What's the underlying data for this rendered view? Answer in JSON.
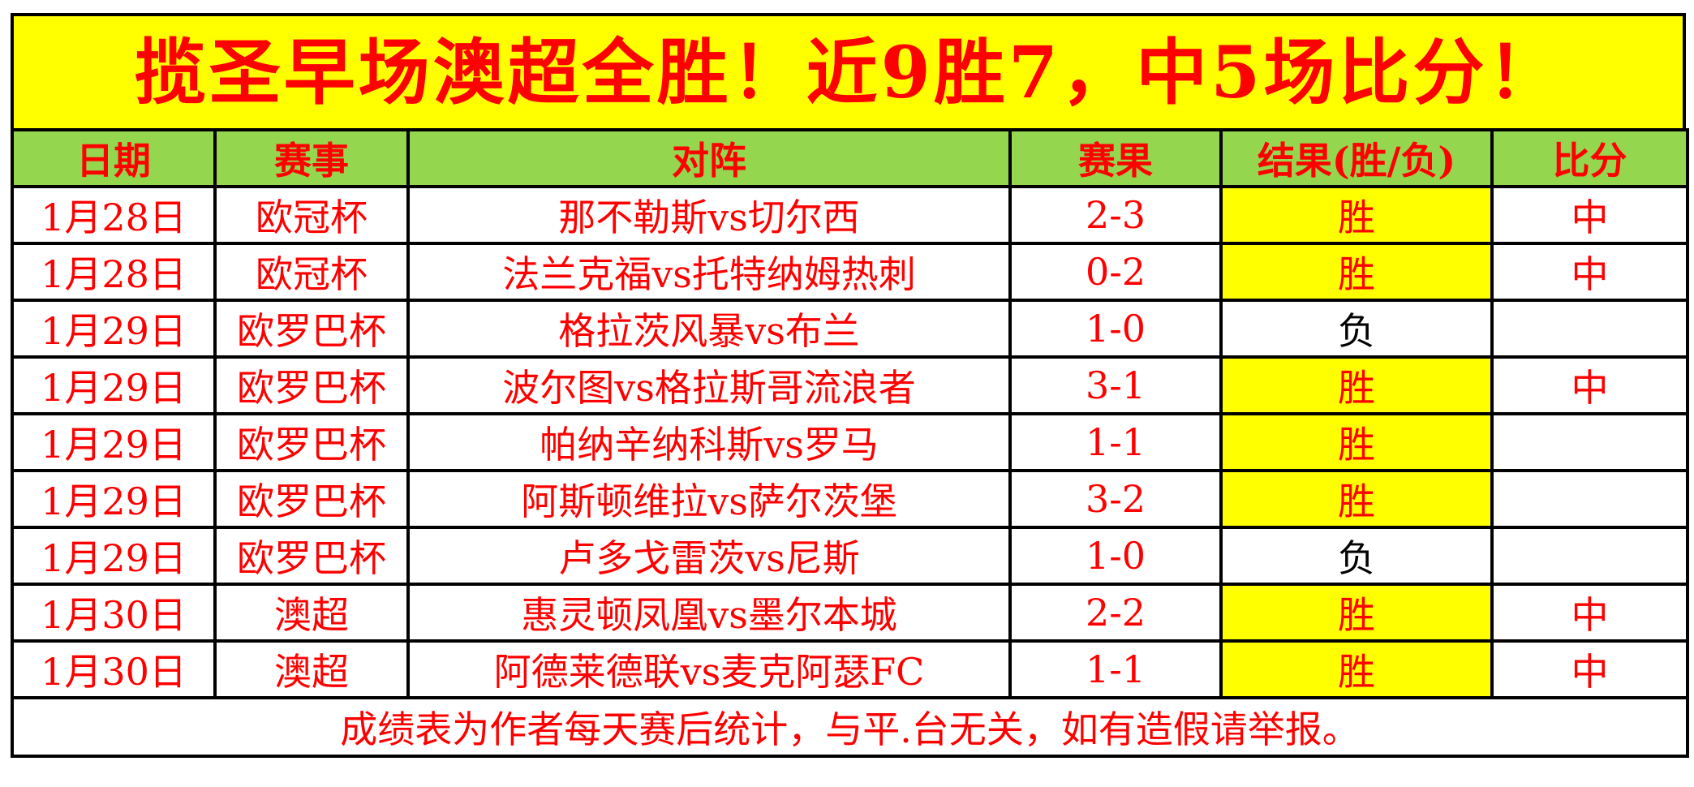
{
  "banner": {
    "title": "揽圣早场澳超全胜！近9胜7，中5场比分！"
  },
  "table": {
    "columns": [
      "日期",
      "赛事",
      "对阵",
      "赛果",
      "结果(胜/负)",
      "比分"
    ],
    "rows": [
      {
        "date": "1月28日",
        "league": "欧冠杯",
        "match": "那不勒斯vs切尔西",
        "score": "2-3",
        "result": "胜",
        "hit": "中"
      },
      {
        "date": "1月28日",
        "league": "欧冠杯",
        "match": "法兰克福vs托特纳姆热刺",
        "score": "0-2",
        "result": "胜",
        "hit": "中"
      },
      {
        "date": "1月29日",
        "league": "欧罗巴杯",
        "match": "格拉茨风暴vs布兰",
        "score": "1-0",
        "result": "负",
        "hit": ""
      },
      {
        "date": "1月29日",
        "league": "欧罗巴杯",
        "match": "波尔图vs格拉斯哥流浪者",
        "score": "3-1",
        "result": "胜",
        "hit": "中"
      },
      {
        "date": "1月29日",
        "league": "欧罗巴杯",
        "match": "帕纳辛纳科斯vs罗马",
        "score": "1-1",
        "result": "胜",
        "hit": ""
      },
      {
        "date": "1月29日",
        "league": "欧罗巴杯",
        "match": "阿斯顿维拉vs萨尔茨堡",
        "score": "3-2",
        "result": "胜",
        "hit": ""
      },
      {
        "date": "1月29日",
        "league": "欧罗巴杯",
        "match": "卢多戈雷茨vs尼斯",
        "score": "1-0",
        "result": "负",
        "hit": ""
      },
      {
        "date": "1月30日",
        "league": "澳超",
        "match": "惠灵顿凤凰vs墨尔本城",
        "score": "2-2",
        "result": "胜",
        "hit": "中"
      },
      {
        "date": "1月30日",
        "league": "澳超",
        "match": "阿德莱德联vs麦克阿瑟FC",
        "score": "1-1",
        "result": "胜",
        "hit": "中"
      }
    ],
    "footer": "成绩表为作者每天赛后统计，与平.台无关，如有造假请举报。"
  },
  "colors": {
    "banner_bg": "#FFFF00",
    "header_bg": "#95D64F",
    "accent_text": "#FF0000",
    "win_bg": "#FFFF00",
    "win_text": "#FF0000",
    "loss_text": "#000000",
    "border": "#000000"
  },
  "chart_data": {
    "type": "table",
    "title": "揽圣早场澳超全胜！近9胜7，中5场比分！",
    "columns": [
      "日期",
      "赛事",
      "对阵",
      "赛果",
      "结果(胜/负)",
      "比分"
    ],
    "rows": [
      [
        "1月28日",
        "欧冠杯",
        "那不勒斯vs切尔西",
        "2-3",
        "胜",
        "中"
      ],
      [
        "1月28日",
        "欧冠杯",
        "法兰克福vs托特纳姆热刺",
        "0-2",
        "胜",
        "中"
      ],
      [
        "1月29日",
        "欧罗巴杯",
        "格拉茨风暴vs布兰",
        "1-0",
        "负",
        ""
      ],
      [
        "1月29日",
        "欧罗巴杯",
        "波尔图vs格拉斯哥流浪者",
        "3-1",
        "胜",
        "中"
      ],
      [
        "1月29日",
        "欧罗巴杯",
        "帕纳辛纳科斯vs罗马",
        "1-1",
        "胜",
        ""
      ],
      [
        "1月29日",
        "欧罗巴杯",
        "阿斯顿维拉vs萨尔茨堡",
        "3-2",
        "胜",
        ""
      ],
      [
        "1月29日",
        "欧罗巴杯",
        "卢多戈雷茨vs尼斯",
        "1-0",
        "负",
        ""
      ],
      [
        "1月30日",
        "澳超",
        "惠灵顿凤凰vs墨尔本城",
        "2-2",
        "胜",
        "中"
      ],
      [
        "1月30日",
        "澳超",
        "阿德莱德联vs麦克阿瑟FC",
        "1-1",
        "胜",
        "中"
      ]
    ],
    "footer": "成绩表为作者每天赛后统计，与平.台无关，如有造假请举报。"
  }
}
